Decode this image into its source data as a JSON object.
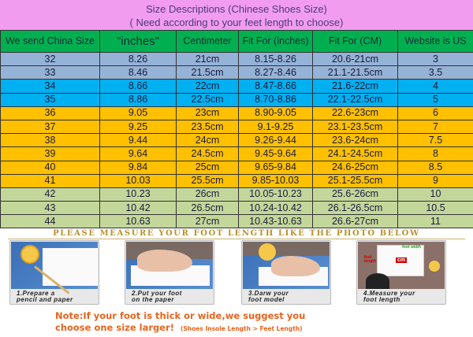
{
  "header": {
    "title": "Size Descriptions  (Chinese Shoes Size)",
    "subtitle": "( Need according to your feet length to choose)"
  },
  "table": {
    "columns": [
      "We send China Size",
      "\"inches\"",
      "Centimeter",
      "Fit For (inches)",
      "Fit For (CM)",
      "Website is  US"
    ],
    "rows": [
      [
        "32",
        "8.26",
        "21cm",
        "8.15-8.26",
        "20.6-21cm",
        "3"
      ],
      [
        "33",
        "8.46",
        "21.5cm",
        "8.27-8.46",
        "21.1-21.5cm",
        "3.5"
      ],
      [
        "34",
        "8.66",
        "22cm",
        "8.47-8.66",
        "21.6-22cm",
        "4"
      ],
      [
        "35",
        "8.86",
        "22.5cm",
        "8.70-8.86",
        "22.1-22.5cm",
        "5"
      ],
      [
        "36",
        "9.05",
        "23cm",
        "8.90-9.05",
        "22.6-23cm",
        "6"
      ],
      [
        "37",
        "9.25",
        "23.5cm",
        "9.1-9.25",
        "23.1-23.5cm",
        "7"
      ],
      [
        "38",
        "9.44",
        "24cm",
        "9.26-9.44",
        "23.6-24cm",
        "7.5"
      ],
      [
        "39",
        "9.64",
        "24.5cm",
        "9.45-9.64",
        "24.1-24.5cm",
        "8"
      ],
      [
        "40",
        "9.84",
        "25cm",
        "9.65-9.84",
        "24.6-25cm",
        "8.5"
      ],
      [
        "41",
        "10.03",
        "25.5cm",
        "9.85-10.03",
        "25.1-25.5cm",
        "9"
      ],
      [
        "42",
        "10.23",
        "26cm",
        "10.05-10.23",
        "25.6-26cm",
        "10"
      ],
      [
        "43",
        "10.42",
        "26.5cm",
        "10.24-10.42",
        "26.1-26.5cm",
        "10.5"
      ],
      [
        "44",
        "10.63",
        "27cm",
        "10.43-10.63",
        "26.6-27cm",
        "11"
      ]
    ],
    "row_colors": [
      "#95b3d7",
      "#95b3d7",
      "#00b0f0",
      "#00b0f0",
      "#ffc000",
      "#ffc000",
      "#ffc000",
      "#ffc000",
      "#ffc000",
      "#ffc000",
      "#c4d79b",
      "#c4d79b",
      "#c4d79b"
    ]
  },
  "measure": {
    "title": "PLEASE  MEASURE  YOUR  FOOT  LENGTH  LIKE  THE  PHOTO  BELOW",
    "steps": [
      {
        "line1": "1.Prepare a",
        "line2": "pencil and paper"
      },
      {
        "line1": "2.Put your foot",
        "line2": "on the paper"
      },
      {
        "line1": "3.Darw your",
        "line2": "foot model"
      },
      {
        "line1": "4.Measure your",
        "line2": "foot length"
      }
    ],
    "diagram_labels": {
      "length": "foot length",
      "width": "foot width",
      "unit": "cm"
    }
  },
  "note": {
    "line1": "Note:If your foot is thick or wide,we suggest you",
    "line2": "choose one size larger!",
    "small": "(Shoes Insole Length > Feet Length)"
  }
}
